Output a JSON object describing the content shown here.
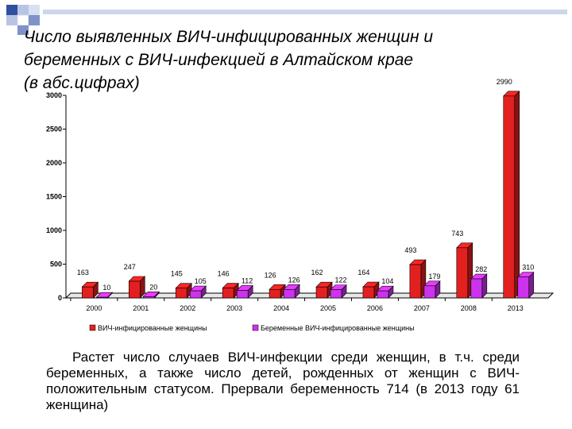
{
  "slide": {
    "title": "Число выявленных ВИЧ-инфицированных женщин  и\nбеременных с ВИЧ-инфекцией в Алтайском крае\n(в абс.цифрах)",
    "note": "Растет число случаев ВИЧ-инфекции среди женщин, в т.ч. среди беременных, а также число детей, рожденных от женщин с ВИЧ-положительным статусом. Прервали беременность 714 (в 2013 году 61 женщина)",
    "accent_color": "#2f4f9f"
  },
  "chart_data": {
    "type": "bar",
    "categories": [
      "2000",
      "2001",
      "2002",
      "2003",
      "2004",
      "2005",
      "2006",
      "2007",
      "2008",
      "2013"
    ],
    "series": [
      {
        "name": "ВИЧ-инфицированные женщины",
        "values": [
          163,
          247,
          145,
          146,
          126,
          162,
          164,
          493,
          743,
          2990
        ],
        "color": "#e32020"
      },
      {
        "name": "Беременные ВИЧ-инфицированные женщины",
        "values": [
          10,
          20,
          105,
          112,
          126,
          122,
          104,
          179,
          282,
          310
        ],
        "color": "#cc33ee"
      }
    ],
    "data_labels": [
      [
        "163",
        "247",
        "145",
        "146",
        "126",
        "162",
        "164",
        "493",
        "743",
        "2990"
      ],
      [
        "10",
        "20",
        "105",
        "112",
        "126",
        "122",
        "104",
        "179",
        "282",
        "310"
      ]
    ],
    "y_ticks": [
      "0",
      "500",
      "1000",
      "1500",
      "2000",
      "2500",
      "3000"
    ],
    "ylim": [
      0,
      3000
    ],
    "legend_position": "bottom",
    "bar_style": "3d-cylinder"
  }
}
